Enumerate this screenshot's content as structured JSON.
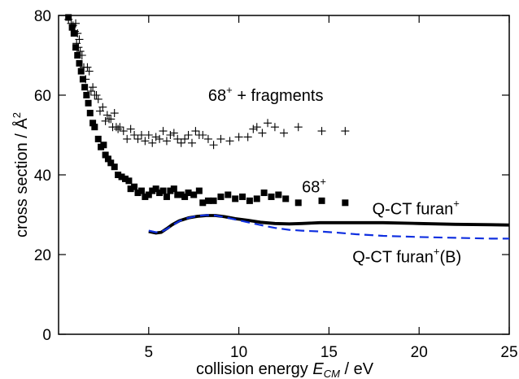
{
  "chart_data": {
    "type": "scatter",
    "title": "",
    "xlabel": {
      "prefix": "collision energy ",
      "var": "E",
      "sub": "CM",
      "suffix": " / eV"
    },
    "ylabel": {
      "prefix": "cross section / ",
      "unit": "Å",
      "sup": "2"
    },
    "xlim": [
      0,
      25
    ],
    "ylim": [
      0,
      80
    ],
    "xticks": [
      5,
      10,
      15,
      20,
      25
    ],
    "yticks": [
      0,
      20,
      40,
      60,
      80
    ],
    "grid": false,
    "legend": "none",
    "annotations": [
      {
        "id": "fragments",
        "base": "68",
        "sup": "+",
        "tail": " + fragments",
        "x": 8.3,
        "y": 60
      },
      {
        "id": "ion68",
        "base": "68",
        "sup": "+",
        "tail": "",
        "x": 13.5,
        "y": 37
      },
      {
        "id": "qct",
        "base": "Q-CT furan",
        "sup": "+",
        "tail": "",
        "x": 17.4,
        "y": 31.5
      },
      {
        "id": "qctb",
        "base": "Q-CT furan",
        "sup": "+",
        "tail": "(B)",
        "x": 16.3,
        "y": 19.5
      }
    ],
    "series": [
      {
        "id": "fragments",
        "marker": "plus",
        "color": "#000000",
        "x": [
          0.55,
          0.7,
          0.8,
          0.9,
          0.95,
          1.0,
          1.05,
          1.1,
          1.15,
          1.2,
          1.3,
          1.4,
          1.5,
          1.6,
          1.7,
          1.8,
          1.9,
          2.0,
          2.1,
          2.2,
          2.3,
          2.45,
          2.6,
          2.7,
          2.8,
          2.9,
          3.0,
          3.1,
          3.2,
          3.3,
          3.4,
          3.6,
          3.8,
          4.0,
          4.2,
          4.4,
          4.6,
          4.8,
          5.0,
          5.2,
          5.4,
          5.6,
          5.8,
          6.0,
          6.2,
          6.4,
          6.6,
          6.8,
          7.0,
          7.2,
          7.4,
          7.6,
          7.8,
          8.0,
          8.3,
          8.6,
          9.0,
          9.5,
          10.0,
          10.5,
          10.8,
          11.0,
          11.3,
          11.6,
          12.0,
          12.5,
          13.3,
          14.6,
          15.9
        ],
        "y": [
          79,
          78,
          77.5,
          76,
          78,
          73,
          75.5,
          72,
          74,
          71,
          70,
          67,
          64,
          67,
          66,
          61,
          62,
          60,
          60,
          59,
          56,
          57,
          53.5,
          55,
          54,
          54,
          52,
          55.5,
          52,
          51.5,
          52,
          51,
          49,
          51.5,
          50,
          49,
          50,
          48.5,
          50,
          48,
          49.5,
          49,
          51,
          48.5,
          50,
          50.5,
          49,
          48,
          49,
          50,
          48,
          51,
          50,
          50,
          49,
          47.5,
          49,
          48.5,
          49.5,
          49.5,
          51.5,
          52,
          50.5,
          53,
          52,
          50.5,
          52,
          51,
          51
        ]
      },
      {
        "id": "ion68",
        "marker": "square",
        "color": "#000000",
        "x": [
          0.55,
          0.75,
          0.85,
          0.95,
          1.05,
          1.15,
          1.25,
          1.35,
          1.45,
          1.55,
          1.65,
          1.75,
          1.9,
          2.0,
          2.2,
          2.35,
          2.5,
          2.6,
          2.75,
          2.9,
          3.1,
          3.3,
          3.5,
          3.7,
          3.9,
          4.0,
          4.2,
          4.4,
          4.6,
          4.8,
          5.0,
          5.2,
          5.4,
          5.6,
          5.8,
          6.0,
          6.2,
          6.4,
          6.6,
          6.8,
          7.0,
          7.2,
          7.5,
          7.8,
          8.0,
          8.3,
          8.6,
          9.0,
          9.4,
          9.8,
          10.2,
          10.6,
          11.0,
          11.4,
          11.8,
          12.2,
          12.6,
          13.3,
          14.6,
          15.9
        ],
        "y": [
          79.5,
          77,
          75.5,
          72,
          70,
          68,
          66,
          64,
          62,
          60,
          58,
          55.5,
          53,
          52,
          49,
          47,
          47.5,
          45,
          44,
          43,
          42,
          40,
          39.5,
          39,
          38.5,
          36.5,
          37,
          35.5,
          36,
          34.5,
          35,
          36,
          36.5,
          35.5,
          36,
          34.5,
          36,
          36.5,
          35,
          35,
          34.5,
          35.5,
          35,
          36,
          33,
          33.5,
          33.5,
          34.5,
          35,
          34,
          34.5,
          33.5,
          34,
          35.5,
          34.5,
          35,
          34,
          33,
          33.5,
          33
        ]
      },
      {
        "id": "qct",
        "style": "line",
        "color": "#000000",
        "width": 3.8,
        "x": [
          5.0,
          5.4,
          5.7,
          6.0,
          6.3,
          6.7,
          7.2,
          7.7,
          8.2,
          8.7,
          9.2,
          9.8,
          10.5,
          11.2,
          12.0,
          12.8,
          13.5,
          14.5,
          16.0,
          18.0,
          20.0,
          22.0,
          24.0,
          25.0
        ],
        "y": [
          25.8,
          25.4,
          25.6,
          26.5,
          27.5,
          28.5,
          29.2,
          29.6,
          29.8,
          29.8,
          29.5,
          29.0,
          28.6,
          28.1,
          27.8,
          27.7,
          27.8,
          28.0,
          28.0,
          28.0,
          27.8,
          27.6,
          27.5,
          27.4
        ]
      },
      {
        "id": "qctb",
        "style": "dash",
        "color": "#1030e0",
        "width": 2.2,
        "x": [
          5.0,
          5.4,
          5.7,
          6.0,
          6.3,
          6.7,
          7.2,
          7.7,
          8.2,
          8.7,
          9.2,
          9.8,
          10.5,
          11.2,
          12.0,
          12.8,
          13.5,
          14.5,
          15.5,
          16.5,
          18.0,
          20.0,
          22.0,
          24.0,
          25.0
        ],
        "y": [
          26.0,
          25.6,
          25.7,
          26.4,
          27.3,
          28.4,
          29.2,
          29.7,
          29.9,
          29.8,
          29.4,
          28.8,
          28.1,
          27.4,
          26.7,
          26.2,
          26.0,
          25.8,
          25.5,
          25.1,
          24.7,
          24.4,
          24.2,
          24.0,
          24.0
        ]
      }
    ]
  }
}
